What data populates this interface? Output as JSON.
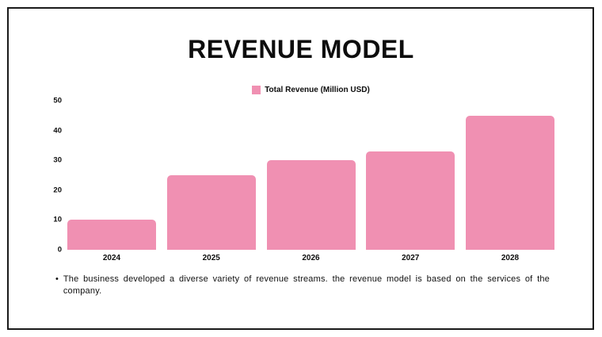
{
  "slide": {
    "title": "REVENUE MODEL",
    "bullet_glyph": "•",
    "footnote": "The business developed a diverse variety of revenue streams. the revenue model is based on the services of the company."
  },
  "legend": {
    "label": "Total Revenue (Million USD)"
  },
  "colors": {
    "bar_pink": "#F090B2",
    "text_black": "#0d0d0d",
    "frame_black": "#1a1a1a"
  },
  "chart_data": {
    "type": "bar",
    "title": "REVENUE MODEL",
    "categories": [
      "2024",
      "2025",
      "2026",
      "2027",
      "2028"
    ],
    "series": [
      {
        "name": "Total Revenue (Million USD)",
        "values": [
          10,
          25,
          30,
          33,
          45
        ]
      }
    ],
    "xlabel": "",
    "ylabel": "",
    "ylim": [
      0,
      50
    ],
    "yticks": [
      0,
      10,
      20,
      30,
      40,
      50
    ],
    "grid": false,
    "legend_position": "top-center",
    "bar_color": "#F090B2"
  }
}
